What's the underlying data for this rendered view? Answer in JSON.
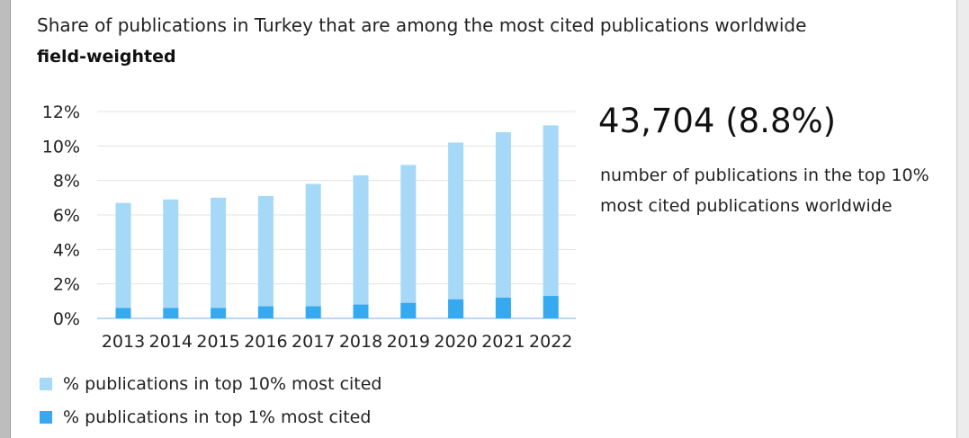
{
  "title": "Share of publications in Turkey that are among the most cited publications worldwide",
  "subtitle": "field-weighted",
  "headline": {
    "value": "43,704 (8.8%)",
    "description": "number of publications in the top 10% most cited publications worldwide"
  },
  "legend": [
    {
      "label": "% publications in top 10% most cited",
      "color": "#a6d8f7"
    },
    {
      "label": "% publications in top 1% most cited",
      "color": "#36aaf0"
    }
  ],
  "chart_data": {
    "type": "bar",
    "stacking": "overlay",
    "categories": [
      "2013",
      "2014",
      "2015",
      "2016",
      "2017",
      "2018",
      "2019",
      "2020",
      "2021",
      "2022"
    ],
    "series": [
      {
        "name": "% publications in top 10% most cited",
        "color": "#a6d8f7",
        "values": [
          6.7,
          6.9,
          7.0,
          7.1,
          7.8,
          8.3,
          8.9,
          10.2,
          10.8,
          11.2
        ]
      },
      {
        "name": "% publications in top 1% most cited",
        "color": "#36aaf0",
        "values": [
          0.6,
          0.6,
          0.6,
          0.7,
          0.7,
          0.8,
          0.9,
          1.1,
          1.2,
          1.3
        ]
      }
    ],
    "y_ticks": [
      "0%",
      "2%",
      "4%",
      "6%",
      "8%",
      "10%",
      "12%"
    ],
    "ylim": [
      0,
      12
    ],
    "grid": true,
    "legend_position": "bottom-left"
  }
}
